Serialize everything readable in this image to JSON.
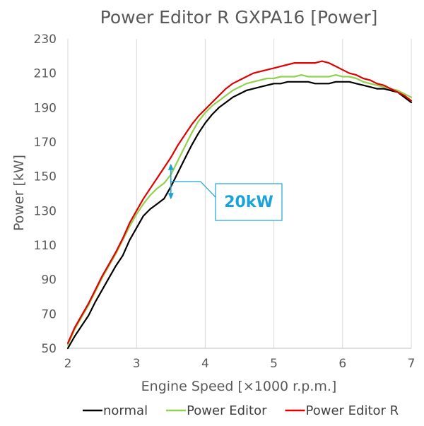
{
  "chart_data": {
    "type": "line",
    "title": "Power Editor R  GXPA16 [Power]",
    "xlabel": "Engine Speed [×1000 r.p.m.]",
    "ylabel": "Power [kW]",
    "xlim": [
      2,
      7
    ],
    "ylim": [
      50,
      230
    ],
    "x_ticks": [
      "2",
      "3",
      "4",
      "5",
      "6",
      "7"
    ],
    "y_ticks": [
      "50",
      "70",
      "90",
      "110",
      "130",
      "150",
      "170",
      "190",
      "210",
      "230"
    ],
    "grid": "vertical",
    "legend_position": "bottom",
    "series": [
      {
        "name": "normal",
        "color": "#000000",
        "x": [
          2.0,
          2.1,
          2.2,
          2.3,
          2.4,
          2.5,
          2.6,
          2.7,
          2.8,
          2.9,
          3.0,
          3.1,
          3.2,
          3.3,
          3.4,
          3.5,
          3.6,
          3.7,
          3.8,
          3.9,
          4.0,
          4.1,
          4.2,
          4.3,
          4.4,
          4.5,
          4.6,
          4.7,
          4.8,
          4.9,
          5.0,
          5.1,
          5.2,
          5.3,
          5.4,
          5.5,
          5.6,
          5.7,
          5.8,
          5.9,
          6.0,
          6.1,
          6.2,
          6.3,
          6.4,
          6.5,
          6.6,
          6.7,
          6.8,
          6.9,
          7.0
        ],
        "values": [
          50,
          57,
          63,
          69,
          77,
          84,
          91,
          98,
          104,
          113,
          120,
          127,
          131,
          134,
          137,
          144,
          152,
          160,
          168,
          175,
          181,
          186,
          190,
          193,
          196,
          198,
          200,
          201,
          202,
          203,
          204,
          204,
          205,
          205,
          205,
          205,
          204,
          204,
          204,
          205,
          205,
          205,
          204,
          203,
          202,
          201,
          201,
          200,
          199,
          196,
          193
        ]
      },
      {
        "name": "Power Editor",
        "color": "#92d050",
        "x": [
          2.0,
          2.1,
          2.2,
          2.3,
          2.4,
          2.5,
          2.6,
          2.7,
          2.8,
          2.9,
          3.0,
          3.1,
          3.2,
          3.3,
          3.4,
          3.5,
          3.6,
          3.7,
          3.8,
          3.9,
          4.0,
          4.1,
          4.2,
          4.3,
          4.4,
          4.5,
          4.6,
          4.7,
          4.8,
          4.9,
          5.0,
          5.1,
          5.2,
          5.3,
          5.4,
          5.5,
          5.6,
          5.7,
          5.8,
          5.9,
          6.0,
          6.1,
          6.2,
          6.3,
          6.4,
          6.5,
          6.6,
          6.7,
          6.8,
          6.9,
          7.0
        ],
        "values": [
          52,
          61,
          68,
          75,
          83,
          91,
          98,
          105,
          113,
          121,
          128,
          134,
          139,
          143,
          146,
          151,
          159,
          167,
          175,
          182,
          187,
          191,
          194,
          197,
          200,
          202,
          204,
          205,
          206,
          207,
          207,
          208,
          208,
          208,
          209,
          208,
          208,
          208,
          208,
          209,
          208,
          208,
          207,
          205,
          204,
          203,
          202,
          201,
          200,
          198,
          196
        ]
      },
      {
        "name": "Power Editor R",
        "color": "#e00000",
        "x": [
          2.0,
          2.1,
          2.2,
          2.3,
          2.4,
          2.5,
          2.6,
          2.7,
          2.8,
          2.9,
          3.0,
          3.1,
          3.2,
          3.3,
          3.4,
          3.5,
          3.6,
          3.7,
          3.8,
          3.9,
          4.0,
          4.1,
          4.2,
          4.3,
          4.4,
          4.5,
          4.6,
          4.7,
          4.8,
          4.9,
          5.0,
          5.1,
          5.2,
          5.3,
          5.4,
          5.5,
          5.6,
          5.7,
          5.8,
          5.9,
          6.0,
          6.1,
          6.2,
          6.3,
          6.4,
          6.5,
          6.6,
          6.7,
          6.8,
          6.9,
          7.0
        ],
        "values": [
          53,
          62,
          69,
          76,
          84,
          92,
          99,
          106,
          114,
          123,
          130,
          137,
          143,
          149,
          155,
          161,
          168,
          174,
          180,
          185,
          189,
          193,
          197,
          201,
          204,
          206,
          208,
          210,
          211,
          212,
          213,
          214,
          215,
          216,
          216,
          216,
          216,
          217,
          216,
          214,
          212,
          210,
          209,
          207,
          206,
          204,
          203,
          201,
          199,
          197,
          194
        ]
      }
    ],
    "annotation": {
      "label": "20kW",
      "x": 3.5,
      "from": 137,
      "to": 157,
      "color": "#1aa3d8"
    }
  }
}
